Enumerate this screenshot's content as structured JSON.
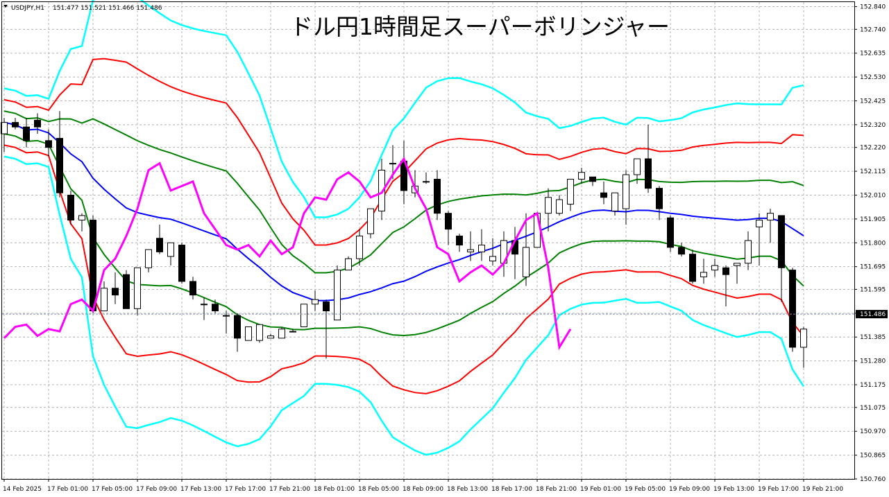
{
  "colors": {
    "background": "#ffffff",
    "grid": "#b4b4b4",
    "axis": "#000000",
    "candle_up": "#ffffff",
    "candle_down": "#000000",
    "candle_outline": "#000000",
    "middle_band": "#0000ff",
    "band_1sigma": "#008000",
    "band_2sigma": "#ff0000",
    "band_3sigma": "#00ffff",
    "lagging_span": "#ff00ff",
    "current_price_tag": "#000000"
  },
  "chart_data": {
    "type": "candlestick",
    "title": "ドル円1時間足スーパーボリンジャー",
    "header": {
      "symbol": "USDJPY,H1",
      "values": "151.477 151.521 151.466 151.486"
    },
    "current_price": 151.486,
    "current_price_label": "151.486",
    "ylim": [
      150.76,
      152.86
    ],
    "y_ticks": [
      "152.840",
      "152.740",
      "152.635",
      "152.530",
      "152.425",
      "152.320",
      "152.220",
      "152.115",
      "152.010",
      "151.905",
      "151.800",
      "151.695",
      "151.595",
      "151.490",
      "151.385",
      "151.280",
      "151.175",
      "151.075",
      "150.970",
      "150.865",
      "150.760"
    ],
    "x_ticks": [
      {
        "i": 0,
        "label": "14 Feb 2025"
      },
      {
        "i": 4,
        "label": "17 Feb 01:00"
      },
      {
        "i": 8,
        "label": "17 Feb 05:00"
      },
      {
        "i": 12,
        "label": "17 Feb 09:00"
      },
      {
        "i": 16,
        "label": "17 Feb 13:00"
      },
      {
        "i": 20,
        "label": "17 Feb 17:00"
      },
      {
        "i": 24,
        "label": "17 Feb 21:00"
      },
      {
        "i": 28,
        "label": "18 Feb 01:00"
      },
      {
        "i": 32,
        "label": "18 Feb 05:00"
      },
      {
        "i": 36,
        "label": "18 Feb 09:00"
      },
      {
        "i": 40,
        "label": "18 Feb 13:00"
      },
      {
        "i": 44,
        "label": "18 Feb 17:00"
      },
      {
        "i": 48,
        "label": "18 Feb 21:00"
      },
      {
        "i": 52,
        "label": "19 Feb 01:00"
      },
      {
        "i": 56,
        "label": "19 Feb 05:00"
      },
      {
        "i": 60,
        "label": "19 Feb 09:00"
      },
      {
        "i": 64,
        "label": "19 Feb 13:00"
      },
      {
        "i": 68,
        "label": "19 Feb 17:00"
      },
      {
        "i": 72,
        "label": "19 Feb 21:00"
      }
    ],
    "candles": [
      [
        152.28,
        152.35,
        152.2,
        152.33
      ],
      [
        152.33,
        152.35,
        152.3,
        152.31
      ],
      [
        152.31,
        152.35,
        152.22,
        152.25
      ],
      [
        152.34,
        152.37,
        152.28,
        152.31
      ],
      [
        152.25,
        152.3,
        152.18,
        152.22
      ],
      [
        152.26,
        152.38,
        152.0,
        152.02
      ],
      [
        152.01,
        152.03,
        151.88,
        151.9
      ],
      [
        151.9,
        151.93,
        151.85,
        151.92
      ],
      [
        151.9,
        151.92,
        151.49,
        151.5
      ],
      [
        151.5,
        151.63,
        151.52,
        151.6
      ],
      [
        151.6,
        151.67,
        151.53,
        151.57
      ],
      [
        151.66,
        151.68,
        151.51,
        151.51
      ],
      [
        151.51,
        151.69,
        151.48,
        151.69
      ],
      [
        151.69,
        151.77,
        151.67,
        151.77
      ],
      [
        151.82,
        151.88,
        151.75,
        151.76
      ],
      [
        151.74,
        151.8,
        151.7,
        151.8
      ],
      [
        151.79,
        151.8,
        151.62,
        151.63
      ],
      [
        151.63,
        151.65,
        151.55,
        151.57
      ],
      [
        151.53,
        151.56,
        151.46,
        151.53
      ],
      [
        151.53,
        151.55,
        151.49,
        151.5
      ],
      [
        151.48,
        151.5,
        151.4,
        151.48
      ],
      [
        151.48,
        151.49,
        151.32,
        151.38
      ],
      [
        151.37,
        151.43,
        151.37,
        151.43
      ],
      [
        151.37,
        151.44,
        151.36,
        151.44
      ],
      [
        151.38,
        151.4,
        151.38,
        151.39
      ],
      [
        151.38,
        151.43,
        151.38,
        151.42
      ],
      [
        151.41,
        151.42,
        151.41,
        151.41
      ],
      [
        151.43,
        151.53,
        151.43,
        151.53
      ],
      [
        151.53,
        151.59,
        151.5,
        151.55
      ],
      [
        151.54,
        151.55,
        151.29,
        151.5
      ],
      [
        151.46,
        151.7,
        151.46,
        151.68
      ],
      [
        151.68,
        151.74,
        151.68,
        151.73
      ],
      [
        151.73,
        151.86,
        151.7,
        151.83
      ],
      [
        151.84,
        151.95,
        151.82,
        151.95
      ],
      [
        151.94,
        152.17,
        151.9,
        152.12
      ],
      [
        152.15,
        152.23,
        152.08,
        152.15
      ],
      [
        152.16,
        152.25,
        151.97,
        152.03
      ],
      [
        152.02,
        152.12,
        152.0,
        152.05
      ],
      [
        152.07,
        152.11,
        152.06,
        152.07
      ],
      [
        152.08,
        152.12,
        151.9,
        151.93
      ],
      [
        151.93,
        151.94,
        151.79,
        151.86
      ],
      [
        151.83,
        151.84,
        151.76,
        151.79
      ],
      [
        151.76,
        151.85,
        151.72,
        151.77
      ],
      [
        151.76,
        151.86,
        151.72,
        151.79
      ],
      [
        151.72,
        151.82,
        151.7,
        151.74
      ],
      [
        151.71,
        151.85,
        151.65,
        151.81
      ],
      [
        151.81,
        151.87,
        151.64,
        151.75
      ],
      [
        151.65,
        151.93,
        151.61,
        151.78
      ],
      [
        151.78,
        151.93,
        151.78,
        151.93
      ],
      [
        151.93,
        152.04,
        151.85,
        152.0
      ],
      [
        151.93,
        152.01,
        151.92,
        151.99
      ],
      [
        151.97,
        152.06,
        151.94,
        152.08
      ],
      [
        152.08,
        152.13,
        152.06,
        152.11
      ],
      [
        152.09,
        152.09,
        152.05,
        152.07
      ],
      [
        152.02,
        152.07,
        151.97,
        152.0
      ],
      [
        151.94,
        152.02,
        151.92,
        152.02
      ],
      [
        151.95,
        152.12,
        151.88,
        152.1
      ],
      [
        152.1,
        152.17,
        152.06,
        152.17
      ],
      [
        152.17,
        152.32,
        152.02,
        152.04
      ],
      [
        152.04,
        152.05,
        151.9,
        151.95
      ],
      [
        151.91,
        151.92,
        151.76,
        151.78
      ],
      [
        151.78,
        151.8,
        151.74,
        151.75
      ],
      [
        151.75,
        151.77,
        151.62,
        151.63
      ],
      [
        151.65,
        151.73,
        151.62,
        151.67
      ],
      [
        151.68,
        151.73,
        151.65,
        151.7
      ],
      [
        151.69,
        151.7,
        151.52,
        151.66
      ],
      [
        151.7,
        151.71,
        151.62,
        151.71
      ],
      [
        151.71,
        151.85,
        151.68,
        151.81
      ],
      [
        151.87,
        151.93,
        151.7,
        151.9
      ],
      [
        151.9,
        151.95,
        151.8,
        151.93
      ],
      [
        151.92,
        151.92,
        151.54,
        151.69
      ],
      [
        151.68,
        151.69,
        151.32,
        151.34
      ],
      [
        151.34,
        151.43,
        151.25,
        151.42
      ]
    ]
  }
}
